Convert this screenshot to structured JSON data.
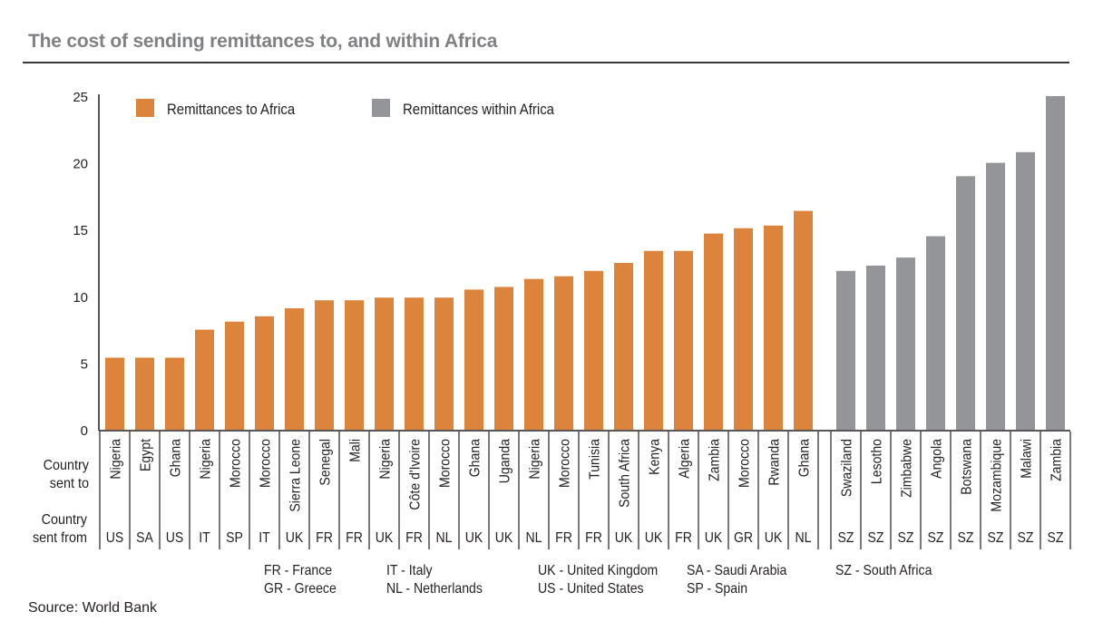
{
  "chart_data": {
    "type": "bar",
    "title": "The cost of sending remittances to, and within Africa",
    "xlabel": "",
    "ylabel": "",
    "ylim": [
      0,
      25
    ],
    "yticks": [
      0,
      5,
      10,
      15,
      20,
      25
    ],
    "grid": false,
    "legend_placement": "top-left",
    "row_labels": {
      "sent_to": "Country\nsent to",
      "sent_from": "Country\nsent from"
    },
    "series": [
      {
        "name": "Remittances to Africa",
        "color": "#dc843b",
        "sent_to": [
          "Nigeria",
          "Egypt",
          "Ghana",
          "Nigeria",
          "Morocco",
          "Morocco",
          "Sierra Leone",
          "Senegal",
          "Mali",
          "Nigeria",
          "Côte d'Ivoire",
          "Morocco",
          "Ghana",
          "Uganda",
          "Nigeria",
          "Morocco",
          "Tunisia",
          "South Africa",
          "Kenya",
          "Algeria",
          "Zambia",
          "Morocco",
          "Rwanda",
          "Ghana"
        ],
        "sent_from": [
          "US",
          "SA",
          "US",
          "IT",
          "SP",
          "IT",
          "UK",
          "FR",
          "FR",
          "UK",
          "FR",
          "NL",
          "UK",
          "UK",
          "NL",
          "FR",
          "FR",
          "UK",
          "UK",
          "FR",
          "UK",
          "GR",
          "UK",
          "NL"
        ],
        "values": [
          5.4,
          5.4,
          5.4,
          7.5,
          8.1,
          8.5,
          9.1,
          9.7,
          9.7,
          9.9,
          9.9,
          9.9,
          10.5,
          10.7,
          11.3,
          11.5,
          11.9,
          12.5,
          13.4,
          13.4,
          14.7,
          15.1,
          15.3,
          16.4
        ]
      },
      {
        "name": "Remittances within Africa",
        "color": "#939598",
        "sent_to": [
          "Swaziland",
          "Lesotho",
          "Zimbabwe",
          "Angola",
          "Botswana",
          "Mozambique",
          "Malawi",
          "Zambia"
        ],
        "sent_from": [
          "SZ",
          "SZ",
          "SZ",
          "SZ",
          "SZ",
          "SZ",
          "SZ",
          "SZ"
        ],
        "values": [
          11.9,
          12.3,
          12.9,
          14.5,
          19.0,
          20.0,
          20.8,
          25.0
        ]
      }
    ],
    "abbreviations": [
      [
        "FR - France",
        "GR - Greece"
      ],
      [
        "IT - Italy",
        "NL - Netherlands"
      ],
      [
        "UK - United Kingdom",
        "US - United States"
      ],
      [
        "SA - Saudi Arabia",
        "SP - Spain"
      ],
      [
        "SZ - South Africa"
      ]
    ],
    "source": "Source: World Bank"
  }
}
